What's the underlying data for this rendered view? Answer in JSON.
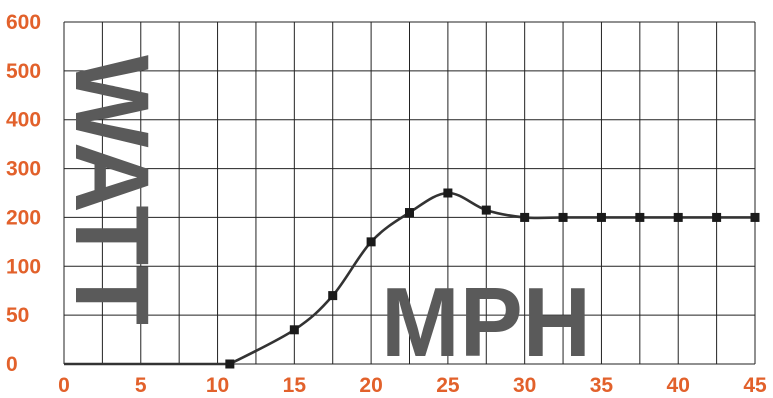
{
  "chart_data": {
    "type": "line",
    "title": "",
    "xlabel": "MPH",
    "ylabel": "WATT",
    "x_ticks": [
      "0",
      "5",
      "10",
      "15",
      "20",
      "25",
      "30",
      "35",
      "40",
      "45"
    ],
    "y_ticks": [
      "0",
      "50",
      "100",
      "200",
      "300",
      "400",
      "500",
      "600"
    ],
    "xlim": [
      0,
      45
    ],
    "y_scale": "piecewise: 0, 50, 100 then steps of 100 up to 600 (equal spacing per tick)",
    "grid": true,
    "legend": "none",
    "colors": {
      "tick_labels": "#e2612b",
      "axis_titles": "#5a5a5a",
      "line": "#333333",
      "grid": "#222222"
    },
    "series": [
      {
        "x": [
          10.8,
          15,
          17.5,
          20,
          22.5,
          25,
          27.5,
          30,
          32.5,
          35,
          37.5,
          40,
          42.5,
          45
        ],
        "y": [
          0,
          35,
          70,
          150,
          210,
          250,
          215,
          200,
          200,
          200,
          200,
          200,
          200,
          200
        ]
      }
    ]
  }
}
